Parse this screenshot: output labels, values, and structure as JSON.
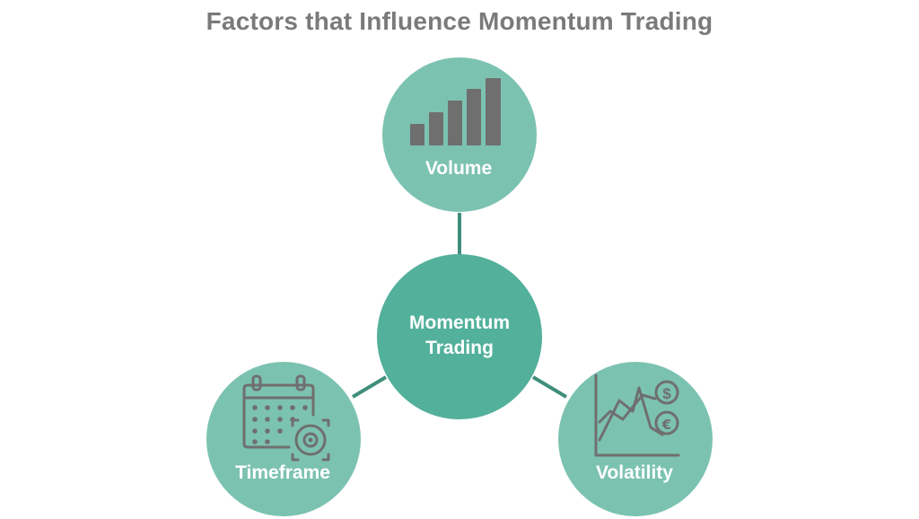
{
  "title": "Factors that Influence Momentum Trading",
  "center": {
    "line1": "Momentum",
    "line2": "Trading"
  },
  "factors": {
    "volume": "Volume",
    "timeframe": "Timeframe",
    "volatility": "Volatility"
  },
  "colors": {
    "title": "#7a7a7a",
    "center_fill": "#52b09b",
    "factor_fill": "#7cc2b1",
    "connector": "#3f8e7c",
    "icon": "#6f6f6f"
  },
  "icons": {
    "volume": "bar-chart-icon",
    "timeframe": "calendar-target-icon",
    "volatility": "currency-chart-icon"
  }
}
